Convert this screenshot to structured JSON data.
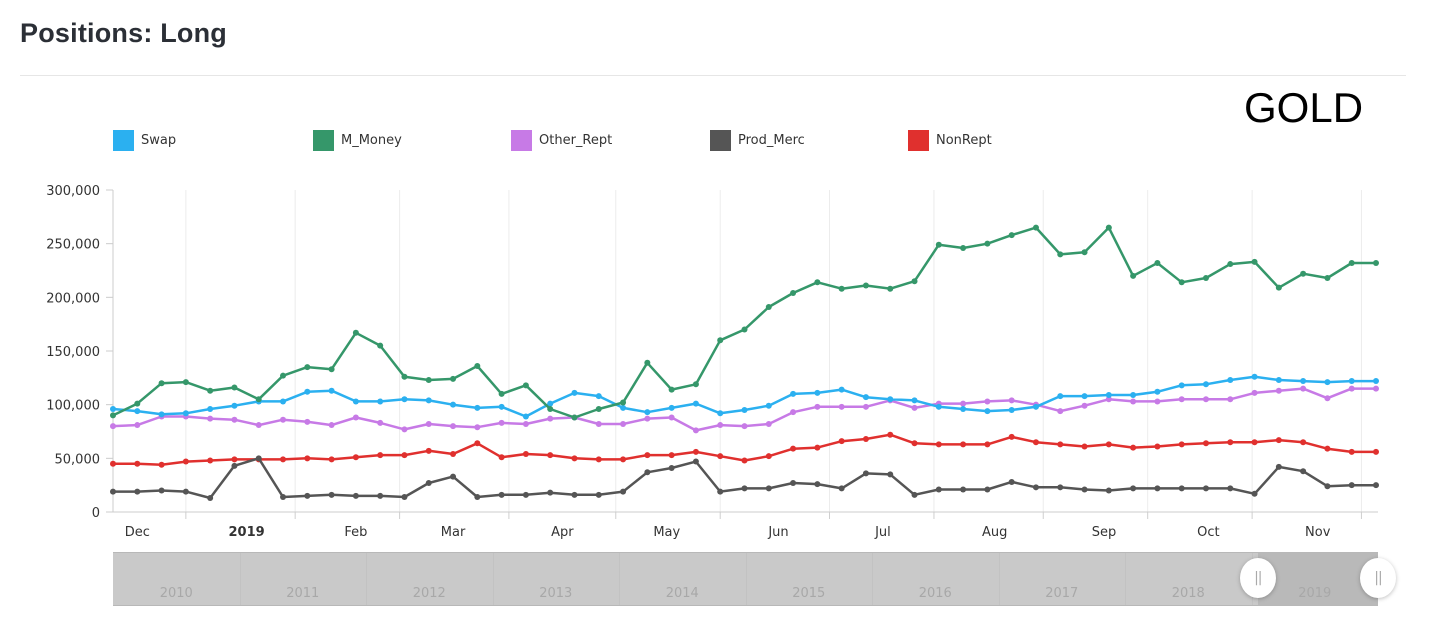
{
  "page": {
    "title": "Positions: Long",
    "commodity": "GOLD"
  },
  "legend": [
    {
      "name": "Swap",
      "color": "#2bb0f0"
    },
    {
      "name": "M_Money",
      "color": "#35976a"
    },
    {
      "name": "Other_Rept",
      "color": "#c77ae6"
    },
    {
      "name": "Prod_Merc",
      "color": "#555555"
    },
    {
      "name": "NonRept",
      "color": "#e0302e"
    }
  ],
  "navigator": {
    "years": [
      "2010",
      "2011",
      "2012",
      "2013",
      "2014",
      "2015",
      "2016",
      "2017",
      "2018",
      "2019"
    ],
    "handle_glyph": "||",
    "selected_range_fraction": [
      0.905,
      1.0
    ]
  },
  "chart_data": {
    "type": "line",
    "title": "Positions: Long",
    "subtitle": "GOLD",
    "xlabel": "",
    "ylabel": "",
    "ylim": [
      0,
      300000
    ],
    "yticks": [
      0,
      50000,
      100000,
      150000,
      200000,
      250000,
      300000
    ],
    "ytick_labels": [
      "0",
      "50,000",
      "100,000",
      "150,000",
      "200,000",
      "250,000",
      "300,000"
    ],
    "xtick_labels": [
      {
        "label": "Dec",
        "bold": false,
        "index": 1
      },
      {
        "label": "2019",
        "bold": true,
        "index": 5.5
      },
      {
        "label": "Feb",
        "bold": false,
        "index": 10
      },
      {
        "label": "Mar",
        "bold": false,
        "index": 14
      },
      {
        "label": "Apr",
        "bold": false,
        "index": 18.5
      },
      {
        "label": "May",
        "bold": false,
        "index": 22.8
      },
      {
        "label": "Jun",
        "bold": false,
        "index": 27.4
      },
      {
        "label": "Jul",
        "bold": false,
        "index": 31.7
      },
      {
        "label": "Aug",
        "bold": false,
        "index": 36.3
      },
      {
        "label": "Sep",
        "bold": false,
        "index": 40.8
      },
      {
        "label": "Oct",
        "bold": false,
        "index": 45.1
      },
      {
        "label": "Nov",
        "bold": false,
        "index": 49.6
      }
    ],
    "grid_line_indices": [
      3,
      7.5,
      11.8,
      16.3,
      20.7,
      25,
      29.5,
      33.8,
      38.3,
      42.6,
      46.9,
      51.4
    ],
    "grid": true,
    "legend_position": "top",
    "x_count": 53,
    "series": [
      {
        "name": "Swap",
        "color": "#2bb0f0",
        "values": [
          96000,
          94000,
          91000,
          92000,
          96000,
          99000,
          103000,
          103000,
          112000,
          113000,
          103000,
          103000,
          105000,
          104000,
          100000,
          97000,
          98000,
          89000,
          101000,
          111000,
          108000,
          97000,
          93000,
          97000,
          101000,
          92000,
          95000,
          99000,
          110000,
          111000,
          114000,
          107000,
          105000,
          104000,
          98000,
          96000,
          94000,
          95000,
          98000,
          108000,
          108000,
          109000,
          109000,
          112000,
          118000,
          119000,
          123000,
          126000,
          123000,
          122000,
          121000,
          122000,
          122000
        ]
      },
      {
        "name": "M_Money",
        "color": "#35976a",
        "values": [
          90000,
          101000,
          120000,
          121000,
          113000,
          116000,
          105000,
          127000,
          135000,
          133000,
          167000,
          155000,
          126000,
          123000,
          124000,
          136000,
          110000,
          118000,
          96000,
          88000,
          96000,
          102000,
          139000,
          114000,
          119000,
          160000,
          170000,
          191000,
          204000,
          214000,
          208000,
          211000,
          208000,
          215000,
          249000,
          246000,
          250000,
          258000,
          265000,
          240000,
          242000,
          265000,
          220000,
          232000,
          214000,
          218000,
          231000,
          233000,
          209000,
          222000,
          218000,
          232000,
          232000
        ]
      },
      {
        "name": "Other_Rept",
        "color": "#c77ae6",
        "values": [
          80000,
          81000,
          89000,
          89000,
          87000,
          86000,
          81000,
          86000,
          84000,
          81000,
          88000,
          83000,
          77000,
          82000,
          80000,
          79000,
          83000,
          82000,
          87000,
          88000,
          82000,
          82000,
          87000,
          88000,
          76000,
          81000,
          80000,
          82000,
          93000,
          98000,
          98000,
          98000,
          104000,
          97000,
          101000,
          101000,
          103000,
          104000,
          100000,
          94000,
          99000,
          105000,
          103000,
          103000,
          105000,
          105000,
          105000,
          111000,
          113000,
          115000,
          106000,
          115000,
          115000
        ]
      },
      {
        "name": "Prod_Merc",
        "color": "#555555",
        "values": [
          19000,
          19000,
          20000,
          19000,
          13000,
          43000,
          50000,
          14000,
          15000,
          16000,
          15000,
          15000,
          14000,
          27000,
          33000,
          14000,
          16000,
          16000,
          18000,
          16000,
          16000,
          19000,
          37000,
          41000,
          47000,
          19000,
          22000,
          22000,
          27000,
          26000,
          22000,
          36000,
          35000,
          16000,
          21000,
          21000,
          21000,
          28000,
          23000,
          23000,
          21000,
          20000,
          22000,
          22000,
          22000,
          22000,
          22000,
          17000,
          42000,
          38000,
          24000,
          25000,
          25000
        ]
      },
      {
        "name": "NonRept",
        "color": "#e0302e",
        "values": [
          45000,
          45000,
          44000,
          47000,
          48000,
          49000,
          49000,
          49000,
          50000,
          49000,
          51000,
          53000,
          53000,
          57000,
          54000,
          64000,
          51000,
          54000,
          53000,
          50000,
          49000,
          49000,
          53000,
          53000,
          56000,
          52000,
          48000,
          52000,
          59000,
          60000,
          66000,
          68000,
          72000,
          64000,
          63000,
          63000,
          63000,
          70000,
          65000,
          63000,
          61000,
          63000,
          60000,
          61000,
          63000,
          64000,
          65000,
          65000,
          67000,
          65000,
          59000,
          56000,
          56000
        ]
      }
    ]
  }
}
